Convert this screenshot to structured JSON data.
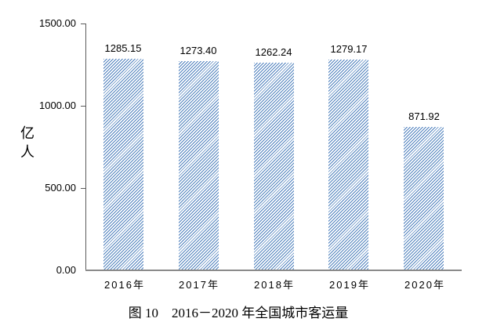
{
  "page": {
    "background": "#ffffff"
  },
  "chart_data": {
    "type": "bar",
    "title": "图 10　2016－2020 年全国城市客运量",
    "ylabel": "亿人",
    "categories": [
      "2016年",
      "2017年",
      "2018年",
      "2019年",
      "2020年"
    ],
    "values": [
      1285.15,
      1273.4,
      1262.24,
      1279.17,
      871.92
    ],
    "value_labels": [
      "1285.15",
      "1273.40",
      "1262.24",
      "1279.17",
      "871.92"
    ],
    "y_ticks": [
      {
        "label": "1500.00",
        "value": 1500
      },
      {
        "label": "1000.00",
        "value": 1000
      },
      {
        "label": "500.00",
        "value": 500
      },
      {
        "label": "0.00",
        "value": 0
      }
    ],
    "ylim": [
      0,
      1500
    ],
    "bar_style": {
      "fill": "diagonal-hatch",
      "color": "#4f81bd"
    },
    "axis_color": "#8a8a8a",
    "grid": false,
    "legend": "none"
  }
}
